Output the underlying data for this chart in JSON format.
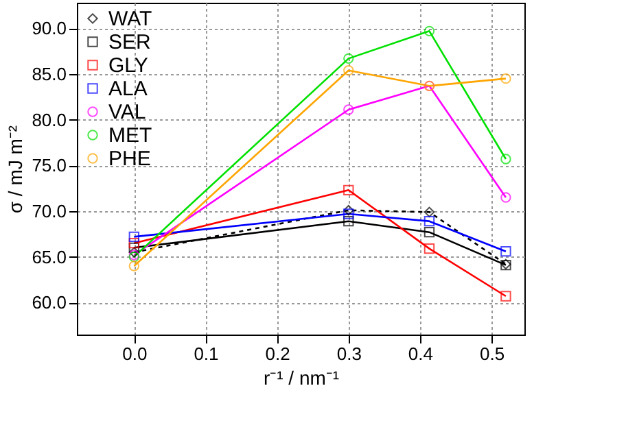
{
  "chart_data": {
    "type": "line",
    "xlabel": "r⁻¹ / nm⁻¹",
    "ylabel": "σ / mJ m⁻²",
    "x": [
      0.0,
      0.3,
      0.413,
      0.52
    ],
    "xlim": [
      -0.08,
      0.546
    ],
    "xticks": [
      {
        "value": 0,
        "label": "0.0"
      },
      0.1,
      0.2,
      0.3,
      0.4,
      0.5
    ],
    "ylim": [
      56.5,
      92.8
    ],
    "yticks": [
      {
        "value": 60,
        "label": "60.0"
      },
      {
        "value": 65,
        "label": "65.0"
      },
      {
        "value": 70,
        "label": "70.0"
      },
      {
        "value": 75,
        "label": "75.0"
      },
      {
        "value": 80,
        "label": "80.0"
      },
      {
        "value": 85,
        "label": "85.0"
      },
      {
        "value": 90,
        "label": "90.0"
      }
    ],
    "grid": true,
    "legend": "top left",
    "series": [
      {
        "name": "WAT",
        "color": "#000000",
        "marker": "diamond",
        "line_style": "dashed",
        "values": [
          65.5,
          70.1,
          69.9,
          64.2
        ]
      },
      {
        "name": "SER",
        "color": "#000000",
        "marker": "square",
        "values": [
          66.0,
          68.9,
          67.7,
          64.1
        ]
      },
      {
        "name": "GLY",
        "color": "#ff0000",
        "marker": "square",
        "values": [
          66.5,
          72.3,
          65.9,
          60.7
        ]
      },
      {
        "name": "ALA",
        "color": "#0000ff",
        "marker": "square",
        "values": [
          67.2,
          69.7,
          68.9,
          65.6
        ]
      },
      {
        "name": "VAL",
        "color": "#ff00ff",
        "marker": "circle",
        "values": [
          65.2,
          81.1,
          83.7,
          71.5
        ]
      },
      {
        "name": "MET",
        "color": "#00e000",
        "marker": "circle",
        "values": [
          65.0,
          86.7,
          89.7,
          75.7
        ]
      },
      {
        "name": "PHE",
        "color": "#ffa500",
        "marker": "circle",
        "values": [
          64.0,
          85.4,
          83.7,
          84.5
        ]
      }
    ]
  }
}
